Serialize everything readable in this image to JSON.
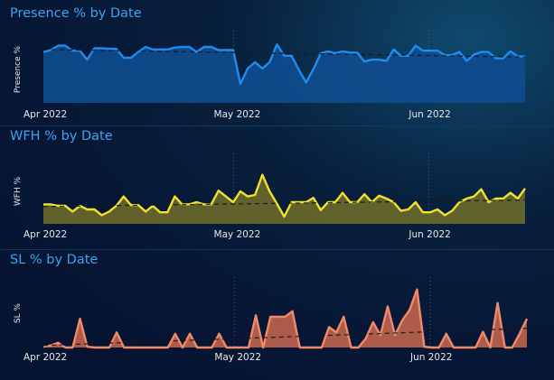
{
  "charts": [
    {
      "title": "Presence % by Date",
      "ylabel": "Presence %",
      "color": "#1e8cf0",
      "fill": "#0f4d8f",
      "x_ticks": [
        "Apr 2022",
        "May 2022",
        "Jun 2022"
      ],
      "values": [
        0.8,
        0.83,
        0.9,
        0.9,
        0.82,
        0.82,
        0.68,
        0.86,
        0.86,
        0.85,
        0.85,
        0.71,
        0.71,
        0.8,
        0.88,
        0.84,
        0.84,
        0.84,
        0.87,
        0.88,
        0.88,
        0.8,
        0.88,
        0.88,
        0.83,
        0.83,
        0.83,
        0.3,
        0.54,
        0.64,
        0.54,
        0.64,
        0.92,
        0.74,
        0.74,
        0.52,
        0.32,
        0.53,
        0.78,
        0.81,
        0.78,
        0.81,
        0.79,
        0.79,
        0.65,
        0.68,
        0.68,
        0.66,
        0.84,
        0.74,
        0.74,
        0.9,
        0.82,
        0.82,
        0.82,
        0.75,
        0.75,
        0.8,
        0.66,
        0.76,
        0.8,
        0.8,
        0.7,
        0.7,
        0.81,
        0.73,
        0.73
      ],
      "trend": [
        0.84,
        0.72
      ],
      "ylim": [
        0.0,
        1.05
      ]
    },
    {
      "title": "WFH % by Date",
      "ylabel": "WFH %",
      "color": "#f0e030",
      "fill": "#6b6a2a",
      "x_ticks": [
        "Apr 2022",
        "May 2022",
        "Jun 2022"
      ],
      "values": [
        0.27,
        0.27,
        0.25,
        0.25,
        0.17,
        0.25,
        0.2,
        0.2,
        0.12,
        0.17,
        0.25,
        0.38,
        0.26,
        0.26,
        0.17,
        0.25,
        0.16,
        0.16,
        0.38,
        0.27,
        0.27,
        0.3,
        0.27,
        0.27,
        0.46,
        0.38,
        0.3,
        0.45,
        0.38,
        0.4,
        0.68,
        0.45,
        0.28,
        0.1,
        0.3,
        0.3,
        0.3,
        0.36,
        0.19,
        0.3,
        0.3,
        0.43,
        0.3,
        0.3,
        0.41,
        0.3,
        0.39,
        0.35,
        0.3,
        0.18,
        0.2,
        0.3,
        0.16,
        0.16,
        0.2,
        0.12,
        0.18,
        0.3,
        0.35,
        0.38,
        0.48,
        0.3,
        0.35,
        0.35,
        0.43,
        0.35,
        0.49
      ],
      "trend": [
        0.24,
        0.33
      ],
      "ylim": [
        0.0,
        0.9
      ]
    },
    {
      "title": "SL % by Date",
      "ylabel": "SL %",
      "color": "#f08a6a",
      "fill": "#c0644e",
      "x_ticks": [
        "Apr 2022",
        "May 2022",
        "Jun 2022"
      ],
      "values": [
        0.01,
        0.03,
        0.07,
        0.0,
        0.0,
        0.42,
        0.01,
        0.0,
        0.0,
        0.0,
        0.22,
        0.0,
        0.0,
        0.0,
        0.0,
        0.0,
        0.0,
        0.0,
        0.2,
        0.0,
        0.2,
        0.0,
        0.0,
        0.0,
        0.2,
        0.0,
        0.0,
        0.0,
        0.0,
        0.47,
        0.0,
        0.45,
        0.45,
        0.45,
        0.53,
        0.0,
        0.0,
        0.0,
        0.0,
        0.3,
        0.22,
        0.45,
        0.0,
        0.0,
        0.13,
        0.37,
        0.18,
        0.6,
        0.18,
        0.4,
        0.55,
        0.85,
        0.01,
        0.0,
        0.0,
        0.2,
        0.0,
        0.0,
        0.0,
        0.0,
        0.23,
        0.0,
        0.65,
        0.0,
        0.0,
        0.2,
        0.42
      ],
      "trend": [
        0.03,
        0.28
      ],
      "ylim": [
        0.0,
        0.95
      ]
    }
  ]
}
